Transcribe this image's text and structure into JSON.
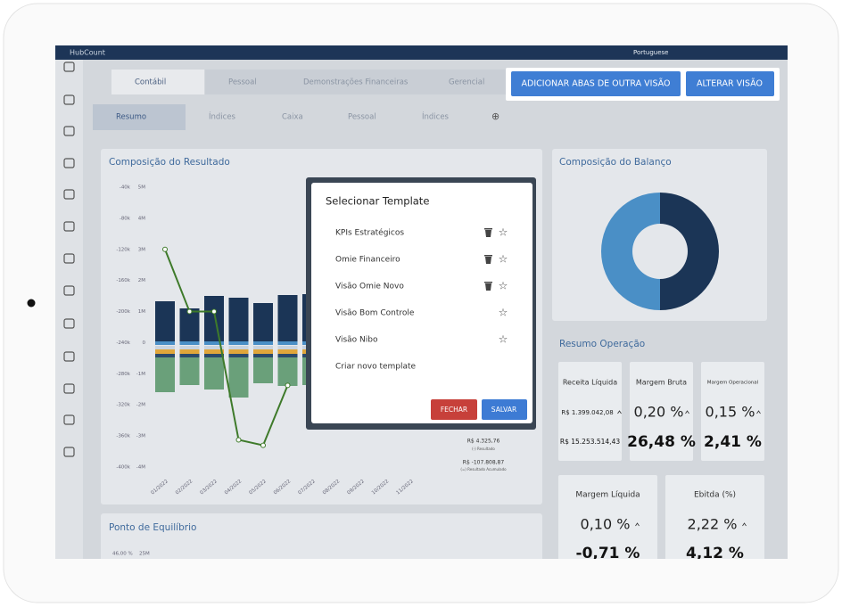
{
  "app": {
    "brand": "HubCount",
    "language": "Portuguese"
  },
  "tabs": [
    "Contábil",
    "Pessoal",
    "Demonstrações Financeiras",
    "Gerencial"
  ],
  "actions": [
    "ADICIONAR ABAS DE OUTRA VISÃO",
    "ALTERAR VISÃO"
  ],
  "subtabs": [
    "Resumo",
    "Índices",
    "Caixa",
    "Pessoal",
    "Índices"
  ],
  "resultado": {
    "title": "Composição do Resultado",
    "legend": [
      {
        "value": "R$ 4.325,76",
        "label": "(-) Resultado"
      },
      {
        "value": "R$ -107.808,87",
        "label": "(=) Resultado Acumulado"
      }
    ]
  },
  "chart_data": {
    "type": "line",
    "categories": [
      "01/2022",
      "02/2022",
      "03/2022",
      "04/2022",
      "05/2022",
      "06/2022",
      "07/2022",
      "08/2022",
      "09/2022",
      "10/2022",
      "11/2022"
    ],
    "series": [
      {
        "color": "#3e7a2a",
        "values": [
          -120,
          -200,
          -200,
          -365,
          -372,
          -295,
          null,
          null,
          null,
          null,
          null
        ]
      }
    ],
    "ylim": [
      -400,
      -40
    ],
    "yticks": [
      {
        "value": -40,
        "label": "-40k"
      },
      {
        "value": -80,
        "label": "-80k"
      },
      {
        "value": -120,
        "label": "-120k"
      },
      {
        "value": -160,
        "label": "-160k"
      },
      {
        "value": -200,
        "label": "-200k"
      },
      {
        "value": -240,
        "label": "-240k"
      },
      {
        "value": -280,
        "label": "-280k"
      },
      {
        "value": -320,
        "label": "-320k"
      },
      {
        "value": -360,
        "label": "-360k"
      },
      {
        "value": -400,
        "label": "-400k"
      }
    ],
    "y2lim": [
      -4,
      5
    ],
    "y2ticks": [
      {
        "value": 5,
        "label": "5M"
      },
      {
        "value": 4,
        "label": "4M"
      },
      {
        "value": 3,
        "label": "3M"
      },
      {
        "value": 2,
        "label": "2M"
      },
      {
        "value": 1,
        "label": "1M"
      },
      0,
      {
        "value": -1,
        "label": "-1M"
      },
      {
        "value": -2,
        "label": "-2M"
      },
      {
        "value": -3,
        "label": "-3M"
      },
      {
        "value": -4,
        "label": "-4M"
      }
    ]
  },
  "balanco": {
    "title": "Composição do Balanço"
  },
  "operacao": {
    "title": "Resumo Operação",
    "kpis": [
      {
        "label": "Receita Líquida",
        "value": "R$ 1.399.042,08",
        "total": "R$ 15.253.514,43"
      },
      {
        "label": "Margem Bruta",
        "value": "0,20 %",
        "total": "26,48 %"
      },
      {
        "label": "Margem Operacional",
        "value": "0,15 %",
        "total": "2,41 %"
      },
      {
        "label": "Margem Líquida",
        "value": "0,10 %",
        "total": "-0,71 %"
      },
      {
        "label": "Ebitda (%)",
        "value": "2,22 %",
        "total": "4,12 %"
      }
    ]
  },
  "equilibrio": {
    "title": "Ponto de Equilíbrio",
    "axis": [
      "46,00 %",
      "25M"
    ]
  },
  "modal": {
    "title": "Selecionar Template",
    "templates": [
      {
        "name": "KPIs Estratégicos",
        "deletable": true
      },
      {
        "name": "Omie Financeiro",
        "deletable": true
      },
      {
        "name": "Visão Omie Novo",
        "deletable": true
      },
      {
        "name": "Visão Bom Controle",
        "deletable": false
      },
      {
        "name": "Visão Nibo",
        "deletable": false
      }
    ],
    "create": "Criar novo template",
    "buttons": [
      "FECHAR",
      "SALVAR"
    ]
  }
}
